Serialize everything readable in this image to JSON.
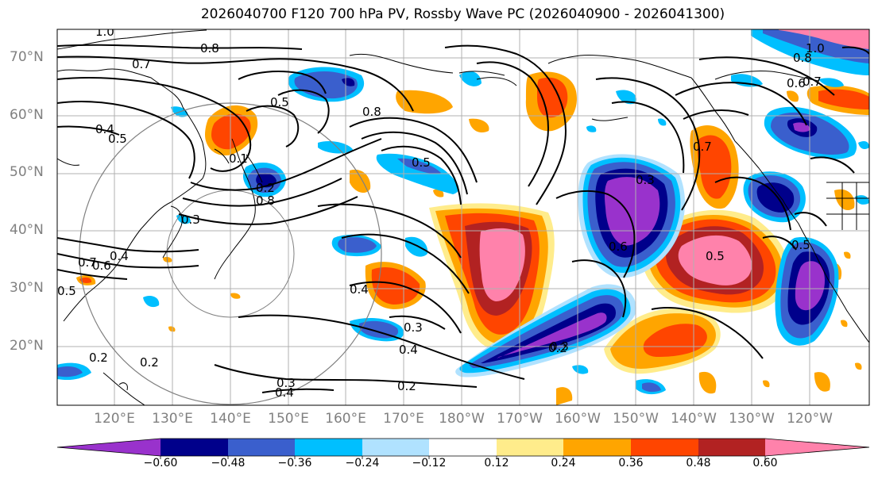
{
  "title": "2026040700 F120 700 hPa PV, Rossby Wave PC (2026040900 - 2026041300)",
  "latitude_labels": [
    "70°N",
    "60°N",
    "50°N",
    "40°N",
    "30°N",
    "20°N"
  ],
  "longitude_labels": [
    "120°E",
    "130°E",
    "140°E",
    "150°E",
    "160°E",
    "170°E",
    "180°W",
    "170°W",
    "160°W",
    "150°W",
    "140°W",
    "130°W",
    "120°W"
  ],
  "contour_labels": [
    "1.0",
    "0.8",
    "0.7",
    "0.5",
    "0.4",
    "0.5",
    "0.8",
    "0.5",
    "0.8",
    "0.2",
    "0.3",
    "0.4",
    "0.6",
    "0.5",
    "0.4",
    "0.3",
    "0.2",
    "0.2",
    "0.3",
    "0.4",
    "0.2",
    "0.3",
    "0.4",
    "0.3",
    "0.2",
    "0.6",
    "0.7",
    "0.5",
    "0.5",
    "1.0",
    "0.8",
    "0.6",
    "0.7",
    "0.1",
    "0.7"
  ],
  "colorbar": {
    "ticks": [
      "−0.60",
      "−0.48",
      "−0.36",
      "−0.24",
      "−0.12",
      "0.12",
      "0.24",
      "0.36",
      "0.48",
      "0.60"
    ],
    "colors": [
      "#9932cc",
      "#00008b",
      "#3a5fcd",
      "#00bfff",
      "#b0e2ff",
      "#ffffff",
      "#ffec8b",
      "#ffa500",
      "#ff4500",
      "#b22222",
      "#ff82ab"
    ]
  },
  "colors": {
    "contour": "#000000",
    "coast": "#000000",
    "grid": "#b0b0b0",
    "axis_label": "#808080"
  }
}
